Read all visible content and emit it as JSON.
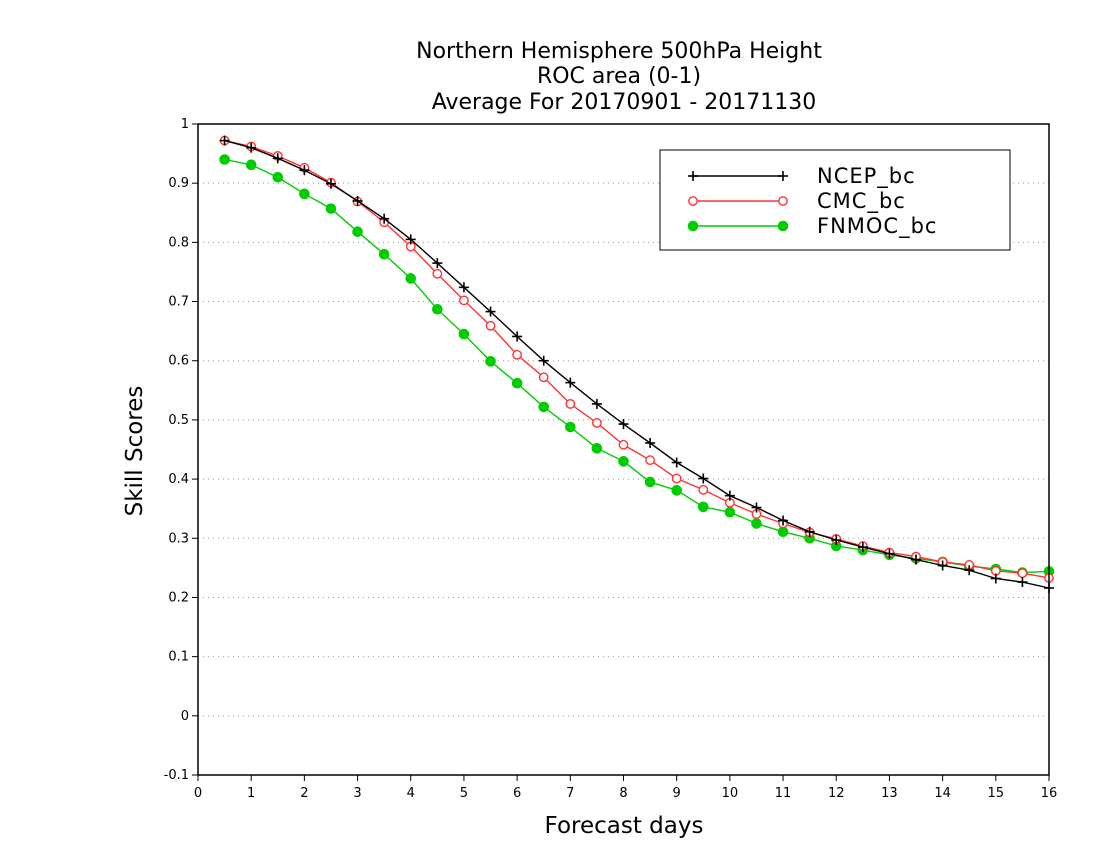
{
  "chart_data": {
    "type": "line",
    "title": [
      "Northern Hemisphere 500hPa Height",
      "ROC area (0-1)",
      "Average For 20170901 - 20171130"
    ],
    "xlabel": "Forecast days",
    "ylabel": "Skill Scores",
    "xlim": [
      0,
      16
    ],
    "ylim": [
      -0.1,
      1
    ],
    "xticks": [
      "0",
      "1",
      "2",
      "3",
      "4",
      "5",
      "6",
      "7",
      "8",
      "9",
      "10",
      "11",
      "12",
      "13",
      "14",
      "15",
      "16"
    ],
    "yticks": [
      "-0.1",
      "0",
      "0.1",
      "0.2",
      "0.3",
      "0.4",
      "0.5",
      "0.6",
      "0.7",
      "0.8",
      "0.9",
      "1"
    ],
    "grid": "horizontal dotted",
    "legend_position": "top-right",
    "x": [
      0.5,
      1,
      1.5,
      2,
      2.5,
      3,
      3.5,
      4,
      4.5,
      5,
      5.5,
      6,
      6.5,
      7,
      7.5,
      8,
      8.5,
      9,
      9.5,
      10,
      10.5,
      11,
      11.5,
      12,
      12.5,
      13,
      13.5,
      14,
      14.5,
      15,
      15.5,
      16
    ],
    "series": [
      {
        "name": "NCEP_bc",
        "color": "#000000",
        "marker": "plus",
        "values": [
          0.972,
          0.96,
          0.942,
          0.922,
          0.899,
          0.87,
          0.84,
          0.805,
          0.765,
          0.724,
          0.683,
          0.641,
          0.6,
          0.563,
          0.527,
          0.493,
          0.461,
          0.428,
          0.401,
          0.372,
          0.352,
          0.33,
          0.311,
          0.297,
          0.285,
          0.274,
          0.264,
          0.254,
          0.246,
          0.232,
          0.226,
          0.216
        ]
      },
      {
        "name": "CMC_bc",
        "color": "#ff3333",
        "marker": "open-circle",
        "values": [
          0.972,
          0.962,
          0.946,
          0.926,
          0.901,
          0.869,
          0.834,
          0.793,
          0.747,
          0.702,
          0.659,
          0.61,
          0.572,
          0.527,
          0.495,
          0.458,
          0.432,
          0.401,
          0.382,
          0.36,
          0.341,
          0.325,
          0.31,
          0.299,
          0.287,
          0.276,
          0.269,
          0.26,
          0.255,
          0.245,
          0.241,
          0.233
        ]
      },
      {
        "name": "FNMOC_bc",
        "color": "#00cc00",
        "marker": "filled-circle",
        "values": [
          0.94,
          0.931,
          0.91,
          0.882,
          0.857,
          0.818,
          0.78,
          0.739,
          0.687,
          0.645,
          0.599,
          0.562,
          0.522,
          0.488,
          0.452,
          0.43,
          0.395,
          0.381,
          0.353,
          0.344,
          0.325,
          0.311,
          0.3,
          0.287,
          0.28,
          0.272,
          0.266,
          0.26,
          0.253,
          0.248,
          0.242,
          0.244
        ]
      }
    ]
  }
}
